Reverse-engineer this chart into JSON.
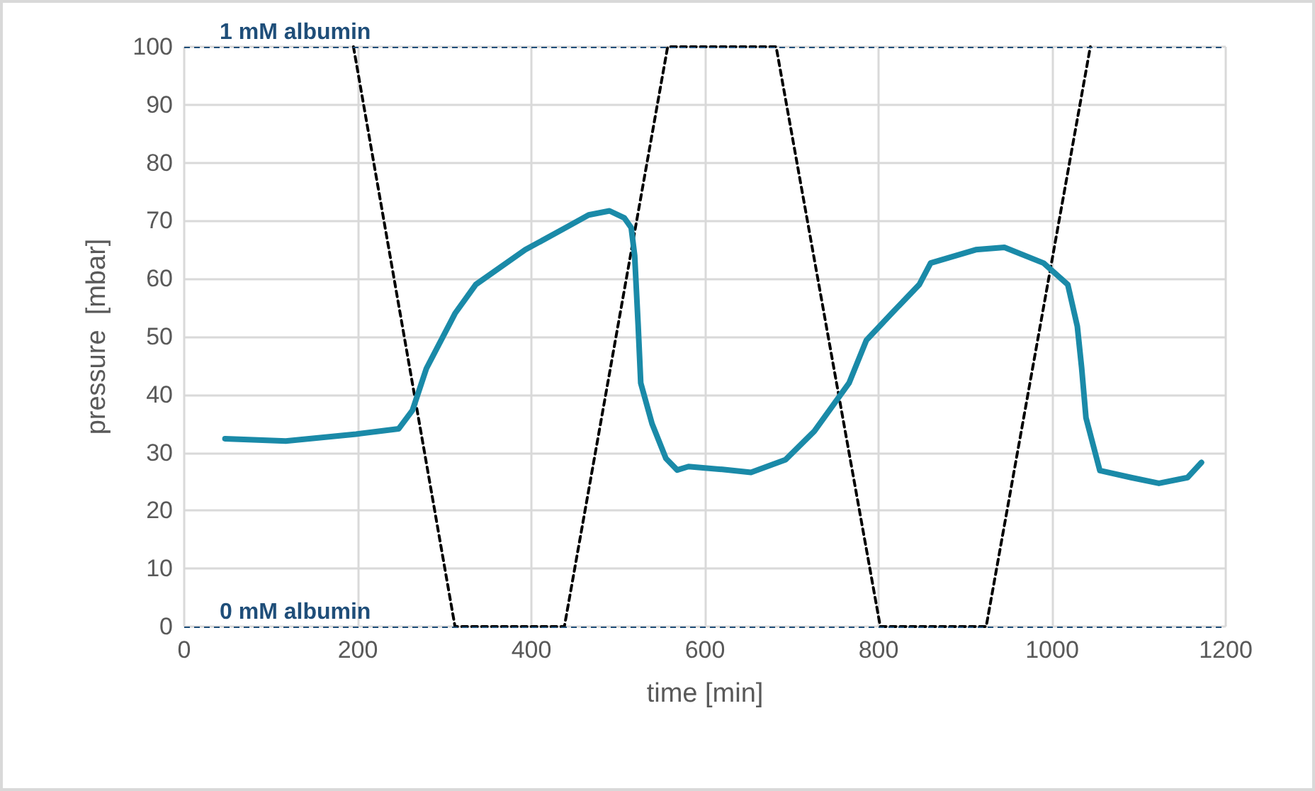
{
  "chart_data": {
    "type": "line",
    "xlabel": "time [min]",
    "ylabel": "pressure  [mbar]",
    "xlim": [
      0,
      1200
    ],
    "xticks": [
      0,
      200,
      400,
      600,
      800,
      1000,
      1200
    ],
    "ylim": [
      0,
      100
    ],
    "yticks": [
      0,
      10,
      20,
      30,
      40,
      50,
      60,
      70,
      80,
      90,
      100
    ],
    "grid": true,
    "marker": "none",
    "series": [
      {
        "color": "#1a8aa8",
        "line_style": "solid",
        "x": [
          47,
          117,
          198,
          247,
          263,
          279,
          312,
          336,
          393,
          442,
          466,
          490,
          507,
          515,
          519,
          523,
          526,
          539,
          555,
          568,
          581,
          620,
          653,
          693,
          726,
          766,
          786,
          815,
          847,
          860,
          912,
          945,
          990,
          1018,
          1029,
          1034,
          1039,
          1055,
          1091,
          1123,
          1156,
          1172
        ],
        "values": [
          32.4,
          32,
          33.2,
          34.1,
          37.3,
          44.5,
          54,
          59,
          65,
          69,
          71,
          71.7,
          70.5,
          68.8,
          64,
          52,
          42,
          35,
          29,
          27,
          27.6,
          27.1,
          26.6,
          28.8,
          33.7,
          42,
          49.4,
          54,
          59,
          62.7,
          65,
          65.4,
          62.7,
          59,
          51.8,
          44.6,
          36,
          26.9,
          25.7,
          24.7,
          25.7,
          28.3
        ]
      },
      {
        "color": "#000000",
        "line_style": "dashed",
        "x": [
          195,
          312,
          438,
          557,
          682,
          802,
          924,
          1044
        ],
        "values": [
          100,
          0,
          0,
          100,
          100,
          0,
          0,
          100
        ]
      }
    ],
    "ref_lines": [
      {
        "axis": "y",
        "value": 100,
        "label": "1 mM albumin",
        "color": "#1f4e79",
        "line_style": "dashed"
      },
      {
        "axis": "y",
        "value": 0,
        "label": "0 mM albumin",
        "color": "#1f4e79",
        "line_style": "dashed"
      }
    ]
  }
}
